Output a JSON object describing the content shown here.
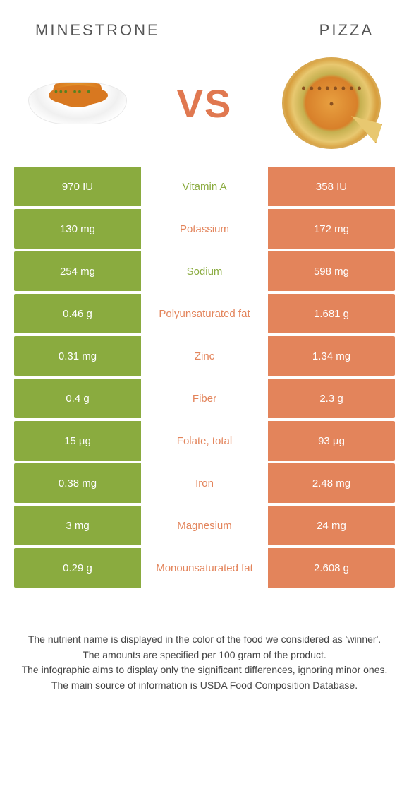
{
  "colors": {
    "green": "#8aab3f",
    "orange": "#e3845b",
    "mid_green_text": "#8aab3f",
    "mid_orange_text": "#e3845b"
  },
  "header": {
    "left": "Minestrone",
    "right": "Pizza"
  },
  "vs_label": "VS",
  "rows": [
    {
      "left": "970 IU",
      "mid": "Vitamin A",
      "right": "358 IU",
      "winner": "left"
    },
    {
      "left": "130 mg",
      "mid": "Potassium",
      "right": "172 mg",
      "winner": "right"
    },
    {
      "left": "254 mg",
      "mid": "Sodium",
      "right": "598 mg",
      "winner": "left"
    },
    {
      "left": "0.46 g",
      "mid": "Polyunsaturated fat",
      "right": "1.681 g",
      "winner": "right"
    },
    {
      "left": "0.31 mg",
      "mid": "Zinc",
      "right": "1.34 mg",
      "winner": "right"
    },
    {
      "left": "0.4 g",
      "mid": "Fiber",
      "right": "2.3 g",
      "winner": "right"
    },
    {
      "left": "15 µg",
      "mid": "Folate, total",
      "right": "93 µg",
      "winner": "right"
    },
    {
      "left": "0.38 mg",
      "mid": "Iron",
      "right": "2.48 mg",
      "winner": "right"
    },
    {
      "left": "3 mg",
      "mid": "Magnesium",
      "right": "24 mg",
      "winner": "right"
    },
    {
      "left": "0.29 g",
      "mid": "Monounsaturated fat",
      "right": "2.608 g",
      "winner": "right"
    }
  ],
  "footer": [
    "The nutrient name is displayed in the color of the food we considered as 'winner'.",
    "The amounts are specified per 100 gram of the product.",
    "The infographic aims to display only the significant differences, ignoring minor ones.",
    "The main source of information is USDA Food Composition Database."
  ]
}
